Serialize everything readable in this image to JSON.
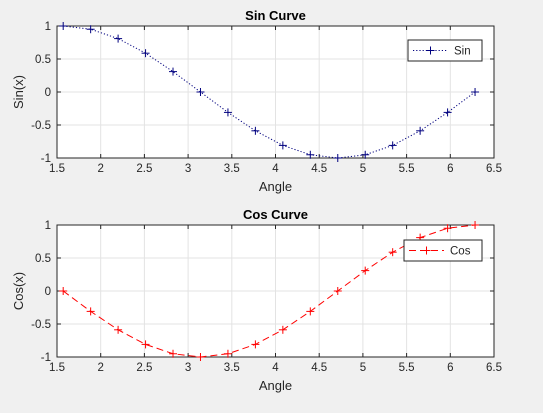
{
  "chart_data": [
    {
      "type": "line",
      "title": "Sin Curve",
      "xlabel": "Angle",
      "ylabel": "Sin(x)",
      "xlim": [
        1.5,
        6.5
      ],
      "ylim": [
        -1,
        1
      ],
      "xticks": [
        "1.5",
        "2",
        "2.5",
        "3",
        "3.5",
        "4",
        "4.5",
        "5",
        "5.5",
        "6",
        "6.5"
      ],
      "yticks": [
        "-1",
        "-0.5",
        "0",
        "0.5",
        "1"
      ],
      "grid": true,
      "legend_position": "top-right",
      "x": [
        1.5708,
        1.885,
        2.1991,
        2.5133,
        2.8274,
        3.1416,
        3.4558,
        3.7699,
        4.0841,
        4.3982,
        4.7124,
        5.0265,
        5.3407,
        5.6549,
        5.969,
        6.2832
      ],
      "series": [
        {
          "name": "Sin",
          "values": [
            1.0,
            0.951,
            0.809,
            0.588,
            0.309,
            0.0,
            -0.309,
            -0.588,
            -0.809,
            -0.951,
            -1.0,
            -0.951,
            -0.809,
            -0.588,
            -0.309,
            0.0
          ],
          "color": "#00007f",
          "line_style": "dotted",
          "marker": "plus"
        }
      ]
    },
    {
      "type": "line",
      "title": "Cos Curve",
      "xlabel": "Angle",
      "ylabel": "Cos(x)",
      "xlim": [
        1.5,
        6.5
      ],
      "ylim": [
        -1,
        1
      ],
      "xticks": [
        "1.5",
        "2",
        "2.5",
        "3",
        "3.5",
        "4",
        "4.5",
        "5",
        "5.5",
        "6",
        "6.5"
      ],
      "yticks": [
        "-1",
        "-0.5",
        "0",
        "0.5",
        "1"
      ],
      "grid": true,
      "legend_position": "top-right",
      "x": [
        1.5708,
        1.885,
        2.1991,
        2.5133,
        2.8274,
        3.1416,
        3.4558,
        3.7699,
        4.0841,
        4.3982,
        4.7124,
        5.0265,
        5.3407,
        5.6549,
        5.969,
        6.2832
      ],
      "series": [
        {
          "name": "Cos",
          "values": [
            0.0,
            -0.309,
            -0.588,
            -0.809,
            -0.951,
            -1.0,
            -0.951,
            -0.809,
            -0.588,
            -0.309,
            0.0,
            0.309,
            0.588,
            0.809,
            0.951,
            1.0
          ],
          "color": "#ff0000",
          "line_style": "dashed",
          "marker": "plus"
        }
      ]
    }
  ]
}
